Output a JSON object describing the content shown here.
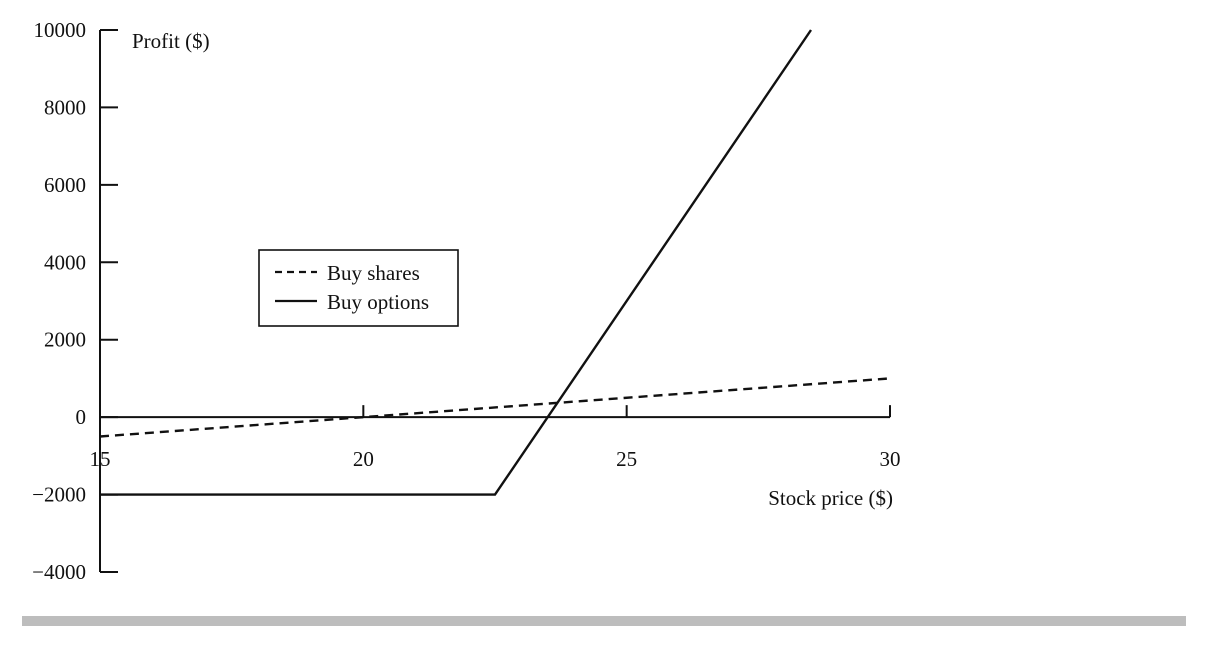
{
  "chart_data": {
    "type": "line",
    "xlabel": "Stock price ($)",
    "ylabel": "Profit ($)",
    "xlim": [
      15,
      30
    ],
    "ylim": [
      -4000,
      10000
    ],
    "x_ticks": [
      15,
      20,
      25,
      30
    ],
    "y_ticks": [
      -4000,
      -2000,
      0,
      2000,
      4000,
      6000,
      8000,
      10000
    ],
    "x_tick_labels": [
      "15",
      "20",
      "25",
      "30"
    ],
    "y_tick_labels": [
      "−4000",
      "−2000",
      "0",
      "2000",
      "4000",
      "6000",
      "8000",
      "10000"
    ],
    "grid": false,
    "legend_position": "center-left",
    "series": [
      {
        "name": "Buy shares",
        "style": "dashed",
        "color": "#111111",
        "points": [
          [
            15,
            -500
          ],
          [
            30,
            1000
          ]
        ]
      },
      {
        "name": "Buy options",
        "style": "solid",
        "color": "#111111",
        "points": [
          [
            15,
            -2000
          ],
          [
            22.5,
            -2000
          ],
          [
            28.5,
            10000
          ]
        ]
      }
    ]
  }
}
